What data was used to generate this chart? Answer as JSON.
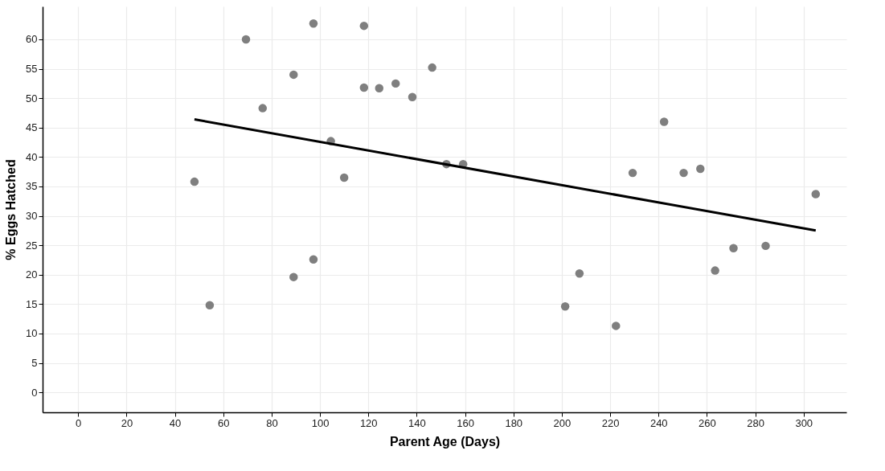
{
  "chart_data": {
    "type": "scatter",
    "xlabel": "Parent Age (Days)",
    "ylabel": "% Eggs Hatched",
    "xlim": [
      -14.7,
      317.7
    ],
    "ylim": [
      -3.4,
      65.6
    ],
    "xticks": [
      0,
      20,
      40,
      60,
      80,
      100,
      120,
      140,
      160,
      180,
      200,
      220,
      240,
      260,
      280,
      300
    ],
    "yticks": [
      0,
      5,
      10,
      15,
      20,
      25,
      30,
      35,
      40,
      45,
      50,
      55,
      60
    ],
    "grid": true,
    "series": [
      {
        "color": "#7f7f7f",
        "marker": "circle",
        "x": [
          48.1,
          54.4,
          69.4,
          76.3,
          89.1,
          89.1,
          97.3,
          97.3,
          104.5,
          110,
          118.2,
          118.2,
          124.5,
          131.3,
          138.2,
          146.4,
          152.3,
          159.2,
          201.4,
          207.3,
          222.4,
          229.3,
          242.3,
          250.4,
          257.3,
          263.4,
          271,
          284.3,
          305
        ],
        "values": [
          35.8,
          14.8,
          60.0,
          48.3,
          54.0,
          19.6,
          62.7,
          22.6,
          42.7,
          36.5,
          62.3,
          51.8,
          51.7,
          52.5,
          50.2,
          55.2,
          38.8,
          38.8,
          14.6,
          20.2,
          11.3,
          37.3,
          46.0,
          37.3,
          38.0,
          20.7,
          24.5,
          24.9,
          33.7
        ]
      },
      {
        "type": "line",
        "color": "#000000",
        "x": [
          48.1,
          305
        ],
        "values": [
          46.4,
          27.5
        ]
      }
    ]
  }
}
